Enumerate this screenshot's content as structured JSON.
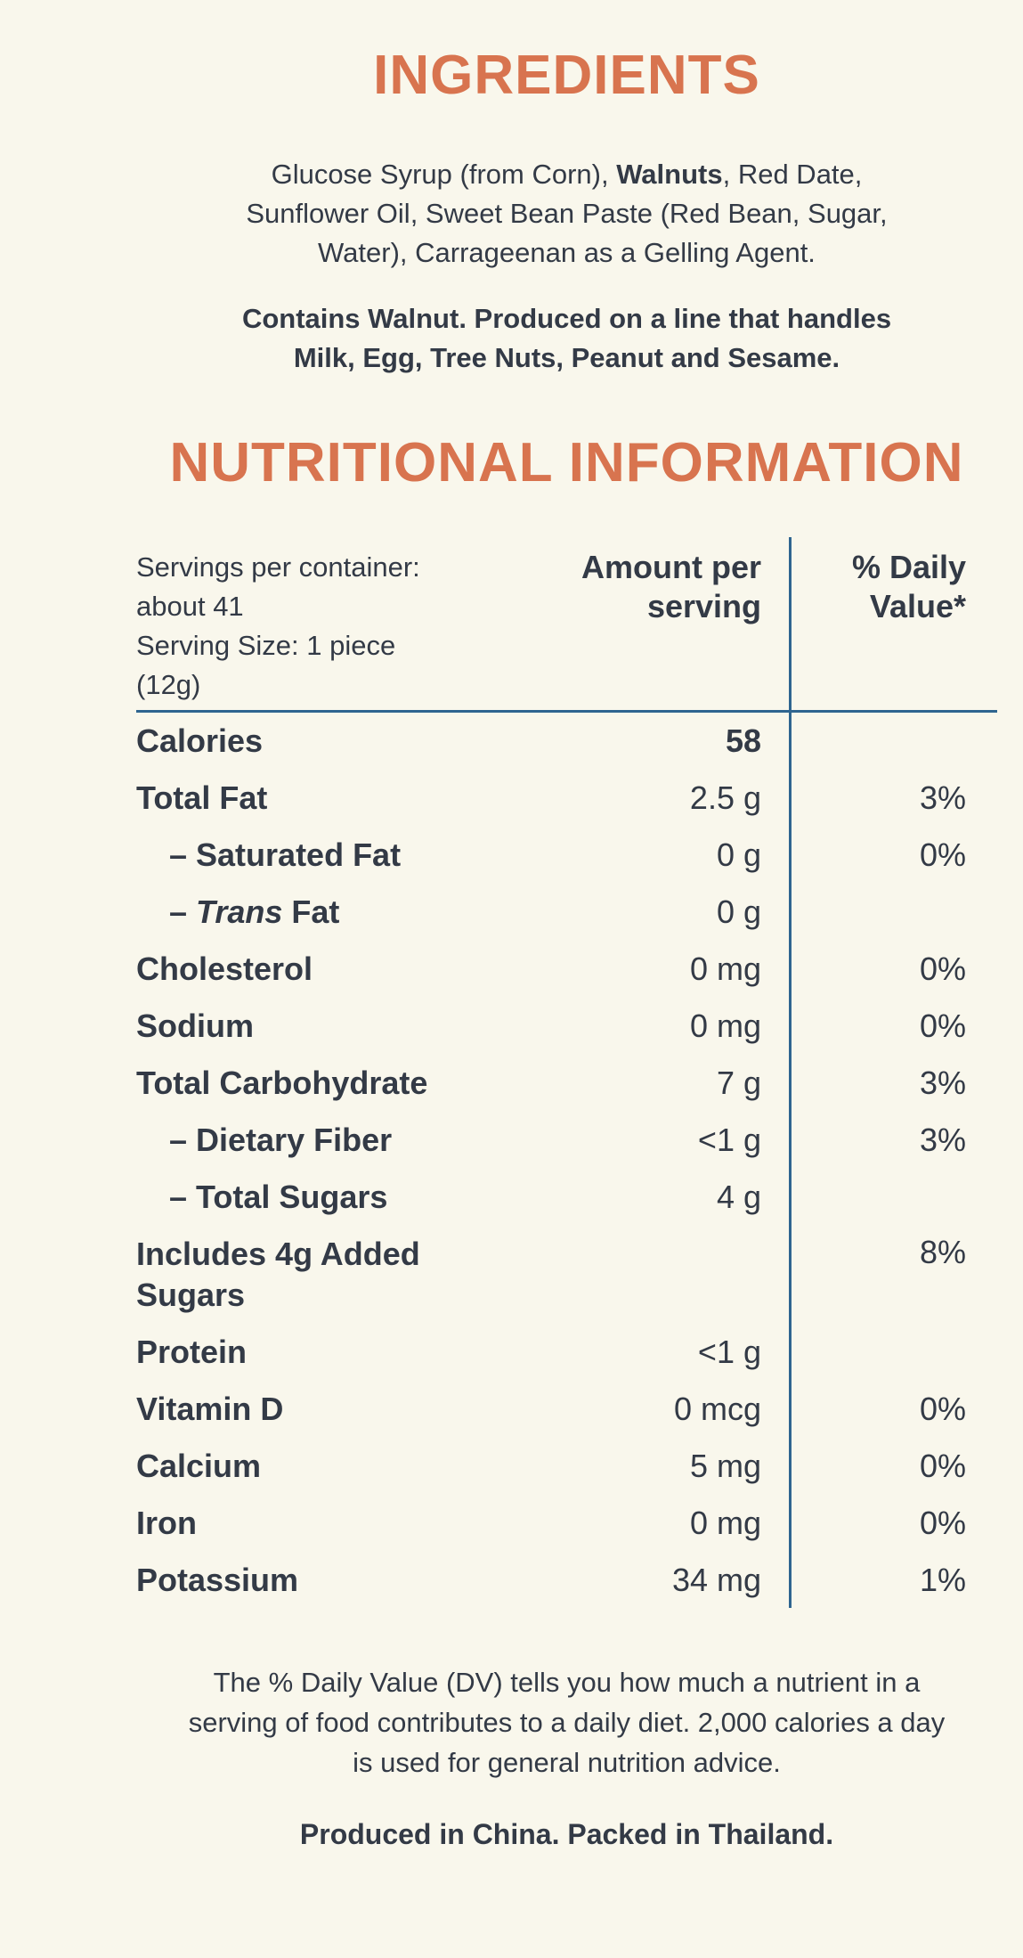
{
  "page": {
    "background_color": "#F9F7EC",
    "accent_color": "#D8744F",
    "text_color": "#333A46",
    "rule_color": "#2F6590"
  },
  "ingredients": {
    "title": "INGREDIENTS",
    "line1_pre": "Glucose Syrup (from Corn), ",
    "line1_bold": "Walnuts",
    "line1_post": ", Red Date,",
    "line2": "Sunflower Oil, Sweet Bean Paste (Red Bean, Sugar,",
    "line3": "Water), Carrageenan as a Gelling Agent.",
    "allergen_line1": "Contains Walnut. Produced on a line that handles",
    "allergen_line2": "Milk, Egg, Tree Nuts, Peanut and Sesame."
  },
  "nutrition": {
    "title": "NUTRITIONAL INFORMATION",
    "header": {
      "serving_lines": [
        "Servings per container:",
        "about 41",
        "Serving Size: 1 piece",
        "(12g)"
      ],
      "amount_line1": "Amount per",
      "amount_line2": "serving",
      "dv_line1": "% Daily",
      "dv_line2": "Value*"
    },
    "rows": [
      {
        "label": "Calories",
        "amount": "58",
        "percent": ""
      },
      {
        "label": "Total Fat",
        "amount": "2.5 g",
        "percent": "3%"
      },
      {
        "label": "– Saturated Fat",
        "amount": "0 g",
        "percent": "0%"
      },
      {
        "label_prefix": "– ",
        "label_italic": "Trans",
        "label_rest": " Fat",
        "amount": "0 g",
        "percent": ""
      },
      {
        "label": "Cholesterol",
        "amount": "0 mg",
        "percent": "0%"
      },
      {
        "label": "Sodium",
        "amount": "0 mg",
        "percent": "0%"
      },
      {
        "label": "Total Carbohydrate",
        "amount": "7 g",
        "percent": "3%"
      },
      {
        "label": "– Dietary Fiber",
        "amount": "<1 g",
        "percent": "3%"
      },
      {
        "label": "– Total Sugars",
        "amount": "4 g",
        "percent": ""
      },
      {
        "label_line1": "Includes 4g Added",
        "label_line2": "Sugars",
        "amount": "",
        "percent": "8%"
      },
      {
        "label": "Protein",
        "amount": "<1 g",
        "percent": ""
      },
      {
        "label": "Vitamin D",
        "amount": "0 mcg",
        "percent": "0%"
      },
      {
        "label": "Calcium",
        "amount": "5 mg",
        "percent": "0%"
      },
      {
        "label": "Iron",
        "amount": "0 mg",
        "percent": "0%"
      },
      {
        "label": "Potassium",
        "amount": "34 mg",
        "percent": "1%"
      }
    ]
  },
  "footer": {
    "dv_note_line1": "The % Daily Value (DV) tells you how much a nutrient in a",
    "dv_note_line2": "serving of food contributes to a daily diet. 2,000 calories a day",
    "dv_note_line3": "is used for general nutrition advice.",
    "origin": "Produced in China. Packed in Thailand."
  }
}
